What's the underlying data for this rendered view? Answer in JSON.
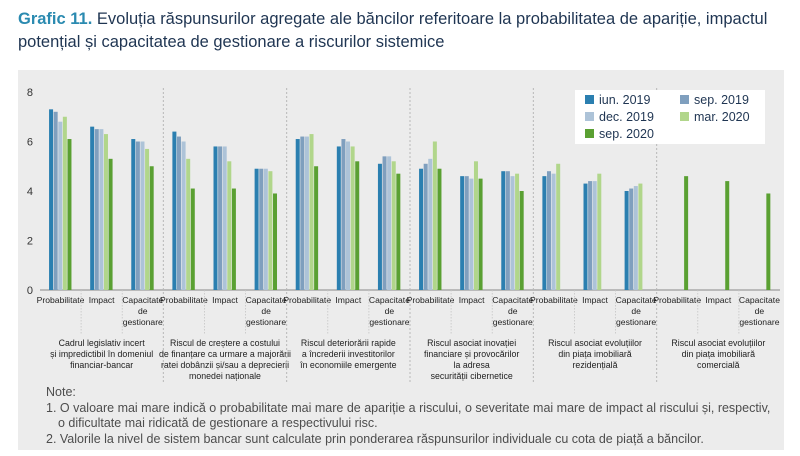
{
  "title": {
    "number": "Grafic 11.",
    "text": "Evoluția răspunsurilor agregate ale băncilor referitoare la probabilitatea de apariție, impactul potențial și capacitatea de gestionare a riscurilor sistemice"
  },
  "notes": {
    "heading": "Note:",
    "lines": [
      "1. O valoare mai mare indică o probabilitate mai mare de apariție a riscului, o severitate mai mare de impact al riscului și, respectiv,",
      "    o dificultate mai ridicată de gestionare a respectivului risc.",
      "2. Valorile la nivel de sistem bancar sunt calculate prin ponderarea răspunsurilor individuale cu cota de piață a băncilor."
    ]
  },
  "chart_data": {
    "type": "bar",
    "ylim": [
      0,
      8
    ],
    "yticks": [
      0,
      2,
      4,
      6,
      8
    ],
    "grid": false,
    "legend_position": "top-right",
    "series": [
      {
        "name": "iun. 2019",
        "color": "#2b7fb0"
      },
      {
        "name": "sep. 2019",
        "color": "#7f9fbe"
      },
      {
        "name": "dec. 2019",
        "color": "#adc3d8"
      },
      {
        "name": "mar. 2020",
        "color": "#b1d68b"
      },
      {
        "name": "sep. 2020",
        "color": "#5aa032"
      }
    ],
    "groups": [
      {
        "label": "Cadrul legislativ incert și impredictibil în domeniul financiar-bancar",
        "label_lines": [
          "Cadrul legislativ incert",
          "și impredictibil în domeniul",
          "financiar-bancar"
        ],
        "categories": [
          {
            "label_lines": [
              "Probabilitate"
            ],
            "values": [
              7.3,
              7.2,
              6.8,
              7.0,
              6.1
            ]
          },
          {
            "label_lines": [
              "Impact"
            ],
            "values": [
              6.6,
              6.5,
              6.5,
              6.3,
              5.3
            ]
          },
          {
            "label_lines": [
              "Capacitate",
              "de",
              "gestionare"
            ],
            "values": [
              6.1,
              6.0,
              6.0,
              5.7,
              5.0
            ]
          }
        ]
      },
      {
        "label": "Riscul de creștere a costului de finanțare ca urmare a majorării ratei dobânzii și/sau a deprecierii monedei naționale",
        "label_lines": [
          "Riscul de creștere a costului",
          "de finanțare ca urmare a majorării",
          "ratei dobânzii și/sau a deprecierii",
          "monedei naționale"
        ],
        "categories": [
          {
            "label_lines": [
              "Probabilitate"
            ],
            "values": [
              6.4,
              6.2,
              6.0,
              5.3,
              4.1
            ]
          },
          {
            "label_lines": [
              "Impact"
            ],
            "values": [
              5.8,
              5.8,
              5.8,
              5.2,
              4.1
            ]
          },
          {
            "label_lines": [
              "Capacitate",
              "de",
              "gestionare"
            ],
            "values": [
              4.9,
              4.9,
              4.9,
              4.8,
              3.9
            ]
          }
        ]
      },
      {
        "label": "Riscul deteriorării rapide a încrederii investitorilor în economiile emergente",
        "label_lines": [
          "Riscul deteriorării rapide",
          "a încrederii investitorilor",
          "în economiile emergente"
        ],
        "categories": [
          {
            "label_lines": [
              "Probabilitate"
            ],
            "values": [
              6.1,
              6.2,
              6.2,
              6.3,
              5.0
            ]
          },
          {
            "label_lines": [
              "Impact"
            ],
            "values": [
              5.8,
              6.1,
              6.0,
              5.8,
              5.2
            ]
          },
          {
            "label_lines": [
              "Capacitate",
              "de",
              "gestionare"
            ],
            "values": [
              5.1,
              5.4,
              5.4,
              5.2,
              4.7
            ]
          }
        ]
      },
      {
        "label": "Riscul asociat inovației financiare și provocărilor la adresa securității cibernetice",
        "label_lines": [
          "Riscul asociat inovației",
          "financiare și provocărilor",
          "la adresa",
          "securității cibernetice"
        ],
        "categories": [
          {
            "label_lines": [
              "Probabilitate"
            ],
            "values": [
              4.9,
              5.1,
              5.3,
              6.0,
              4.9
            ]
          },
          {
            "label_lines": [
              "Impact"
            ],
            "values": [
              4.6,
              4.6,
              4.5,
              5.2,
              4.5
            ]
          },
          {
            "label_lines": [
              "Capacitate",
              "de",
              "gestionare"
            ],
            "values": [
              4.8,
              4.8,
              4.6,
              4.7,
              4.0
            ]
          }
        ]
      },
      {
        "label": "Riscul asociat evoluțiilor din piața imobiliară rezidențială",
        "label_lines": [
          "Riscul asociat evoluțiilor",
          "din piața imobiliară",
          "rezidențială"
        ],
        "categories": [
          {
            "label_lines": [
              "Probabilitate"
            ],
            "values": [
              4.6,
              4.8,
              4.7,
              5.1,
              null
            ]
          },
          {
            "label_lines": [
              "Impact"
            ],
            "values": [
              4.3,
              4.4,
              4.4,
              4.7,
              null
            ]
          },
          {
            "label_lines": [
              "Capacitate",
              "de",
              "gestionare"
            ],
            "values": [
              4.0,
              4.1,
              4.2,
              4.3,
              null
            ]
          }
        ]
      },
      {
        "label": "Riscul asociat evoluțiilor din piața imobiliară comercială",
        "label_lines": [
          "Riscul asociat evoluțiilor",
          "din piața imobiliară",
          "comercială"
        ],
        "categories": [
          {
            "label_lines": [
              "Probabilitate"
            ],
            "values": [
              null,
              null,
              null,
              null,
              4.6
            ]
          },
          {
            "label_lines": [
              "Impact"
            ],
            "values": [
              null,
              null,
              null,
              null,
              4.4
            ]
          },
          {
            "label_lines": [
              "Capacitate",
              "de",
              "gestionare"
            ],
            "values": [
              null,
              null,
              null,
              null,
              3.9
            ]
          }
        ]
      }
    ]
  }
}
